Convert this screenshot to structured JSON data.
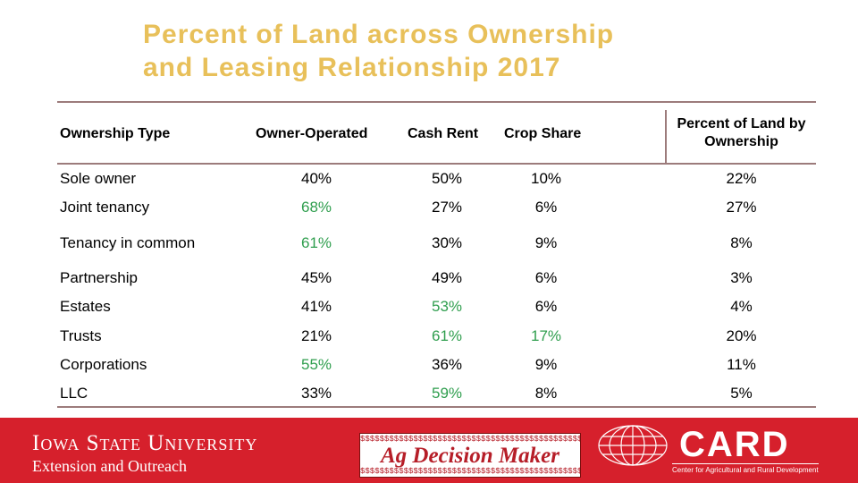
{
  "slide": {
    "title_line1": "Percent of Land across Ownership",
    "title_line2": "and Leasing Relationship 2017"
  },
  "table": {
    "headers": {
      "type": "Ownership Type",
      "owner_operated": "Owner-Operated",
      "cash_rent": "Cash Rent",
      "crop_share": "Crop Share",
      "pct_line1": "Percent of Land by",
      "pct_line2": "Ownership"
    },
    "rows": [
      {
        "type": "Sole owner",
        "owner_operated": "40%",
        "cash_rent": "50%",
        "crop_share": "10%",
        "pct": "22%"
      },
      {
        "type": "Joint tenancy",
        "owner_operated": "68%",
        "cash_rent": "27%",
        "crop_share": "6%",
        "pct": "27%"
      },
      {
        "type": "Tenancy in common",
        "owner_operated": "61%",
        "cash_rent": "30%",
        "crop_share": "9%",
        "pct": "8%"
      },
      {
        "type": "Partnership",
        "owner_operated": "45%",
        "cash_rent": "49%",
        "crop_share": "6%",
        "pct": "3%"
      },
      {
        "type": "Estates",
        "owner_operated": "41%",
        "cash_rent": "53%",
        "crop_share": "6%",
        "pct": "4%"
      },
      {
        "type": "Trusts",
        "owner_operated": "21%",
        "cash_rent": "61%",
        "crop_share": "17%",
        "pct": "20%"
      },
      {
        "type": "Corporations",
        "owner_operated": "55%",
        "cash_rent": "36%",
        "crop_share": "9%",
        "pct": "11%"
      },
      {
        "type": "LLC",
        "owner_operated": "33%",
        "cash_rent": "59%",
        "crop_share": "8%",
        "pct": "5%"
      }
    ]
  },
  "footer": {
    "isu_line1": "Iowa State University",
    "isu_line2": "Extension and Outreach",
    "adm_name": "Ag Decision Maker",
    "adm_pattern": "$$$$$$$$$$$$$$$$$$$$$$$$$$$$$$$$$$$$$$$$$$$$$$$$$$$",
    "card_name": "CARD",
    "card_sub": "Center for Agricultural and Rural Development"
  },
  "colors": {
    "title": "#e8c05a",
    "highlight": "#2f9e4e",
    "footer_bg": "#d6202c",
    "rules": "#9c7b7b"
  }
}
